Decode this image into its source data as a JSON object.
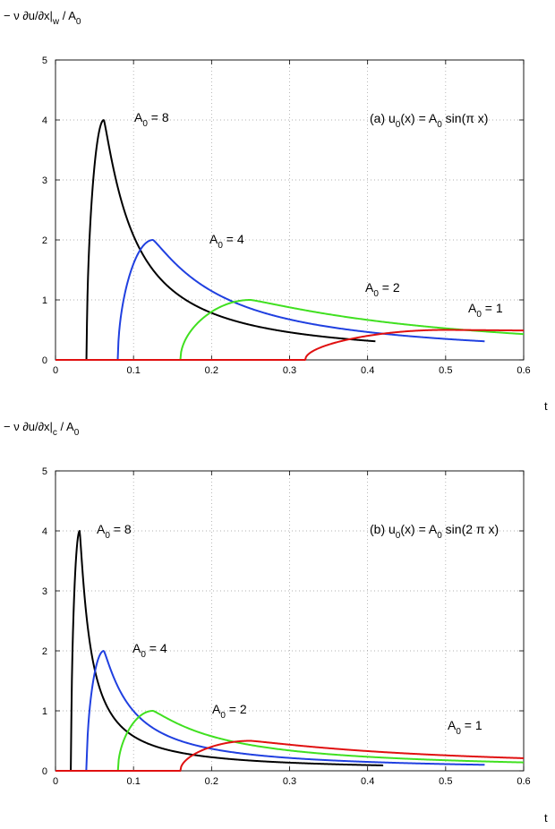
{
  "chart_data": [
    {
      "type": "line",
      "ylabel_parts": [
        "− ν ∂u/∂x|",
        "w",
        " / A",
        "0"
      ],
      "xlabel": "t",
      "xlim": [
        0,
        0.6
      ],
      "ylim": [
        0,
        5
      ],
      "xticks": [
        "0",
        "0.1",
        "0.2",
        "0.3",
        "0.4",
        "0.5",
        "0.6"
      ],
      "yticks": [
        "0",
        "1",
        "2",
        "3",
        "4",
        "5"
      ],
      "grid": true,
      "annotation_parts": [
        "(a) u",
        "0",
        "(x) = A",
        "0",
        " sin(π x)"
      ],
      "series": [
        {
          "name": "A0 = 8",
          "label_parts": [
            "A",
            "0",
            " = 8"
          ],
          "color": "#000000",
          "onset": 0.04,
          "peak_t": 0.062,
          "peak_v": 4.0,
          "t_end": 0.41,
          "v_end": 0.31
        },
        {
          "name": "A0 = 4",
          "label_parts": [
            "A",
            "0",
            " = 4"
          ],
          "color": "#2040e0",
          "onset": 0.08,
          "peak_t": 0.125,
          "peak_v": 2.0,
          "t_end": 0.55,
          "v_end": 0.31
        },
        {
          "name": "A0 = 2",
          "label_parts": [
            "A",
            "0",
            " = 2"
          ],
          "color": "#40e020",
          "onset": 0.16,
          "peak_t": 0.25,
          "peak_v": 1.0,
          "t_end": 0.6,
          "v_end": 0.43
        },
        {
          "name": "A0 = 1",
          "label_parts": [
            "A",
            "0",
            " = 1"
          ],
          "color": "#e01010",
          "onset": 0.32,
          "peak_t": 0.5,
          "peak_v": 0.5,
          "t_end": 0.6,
          "v_end": 0.49
        }
      ]
    },
    {
      "type": "line",
      "ylabel_parts": [
        "− ν ∂u/∂x|",
        "c",
        " / A",
        "0"
      ],
      "xlabel": "t",
      "xlim": [
        0,
        0.6
      ],
      "ylim": [
        0,
        5
      ],
      "xticks": [
        "0",
        "0.1",
        "0.2",
        "0.3",
        "0.4",
        "0.5",
        "0.6"
      ],
      "yticks": [
        "0",
        "1",
        "2",
        "3",
        "4",
        "5"
      ],
      "grid": true,
      "annotation_parts": [
        "(b) u",
        "0",
        "(x) = A",
        "0",
        " sin(2 π x)"
      ],
      "series": [
        {
          "name": "A0 = 8",
          "label_parts": [
            "A",
            "0",
            " = 8"
          ],
          "color": "#000000",
          "onset": 0.02,
          "peak_t": 0.031,
          "peak_v": 4.0,
          "t_end": 0.42,
          "v_end": 0.09
        },
        {
          "name": "A0 = 4",
          "label_parts": [
            "A",
            "0",
            " = 4"
          ],
          "color": "#2040e0",
          "onset": 0.04,
          "peak_t": 0.062,
          "peak_v": 2.0,
          "t_end": 0.55,
          "v_end": 0.1
        },
        {
          "name": "A0 = 2",
          "label_parts": [
            "A",
            "0",
            " = 2"
          ],
          "color": "#40e020",
          "onset": 0.08,
          "peak_t": 0.125,
          "peak_v": 1.0,
          "t_end": 0.6,
          "v_end": 0.14
        },
        {
          "name": "A0 = 1",
          "label_parts": [
            "A",
            "0",
            " = 1"
          ],
          "color": "#e01010",
          "onset": 0.16,
          "peak_t": 0.25,
          "peak_v": 0.5,
          "t_end": 0.6,
          "v_end": 0.21
        }
      ]
    }
  ]
}
